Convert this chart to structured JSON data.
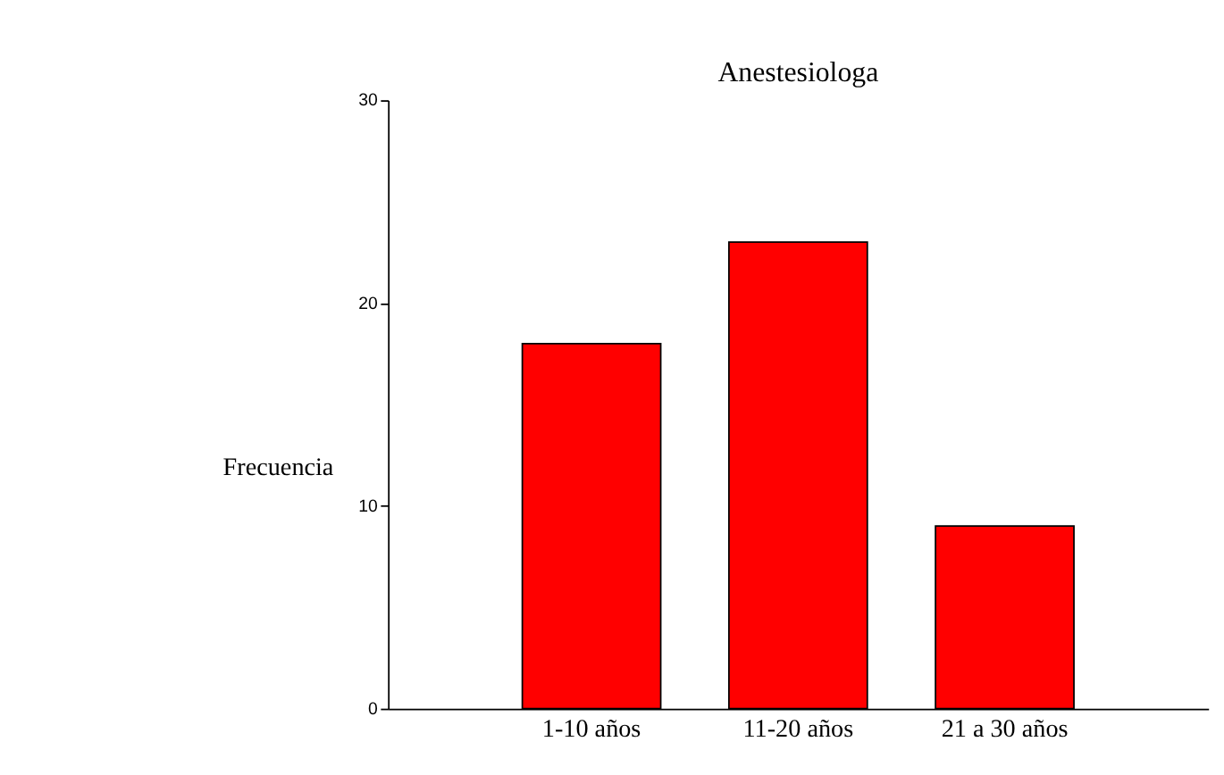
{
  "chart_data": {
    "type": "bar",
    "title": "Anestesiologa",
    "ylabel": "Frecuencia",
    "categories": [
      "1-10 años",
      "11-20 años",
      "21 a 30 años"
    ],
    "values": [
      18,
      23,
      9
    ],
    "color": "#ff0000",
    "ylim": [
      0,
      30
    ],
    "yticks": [
      0,
      10,
      20,
      30
    ],
    "grid": false
  }
}
